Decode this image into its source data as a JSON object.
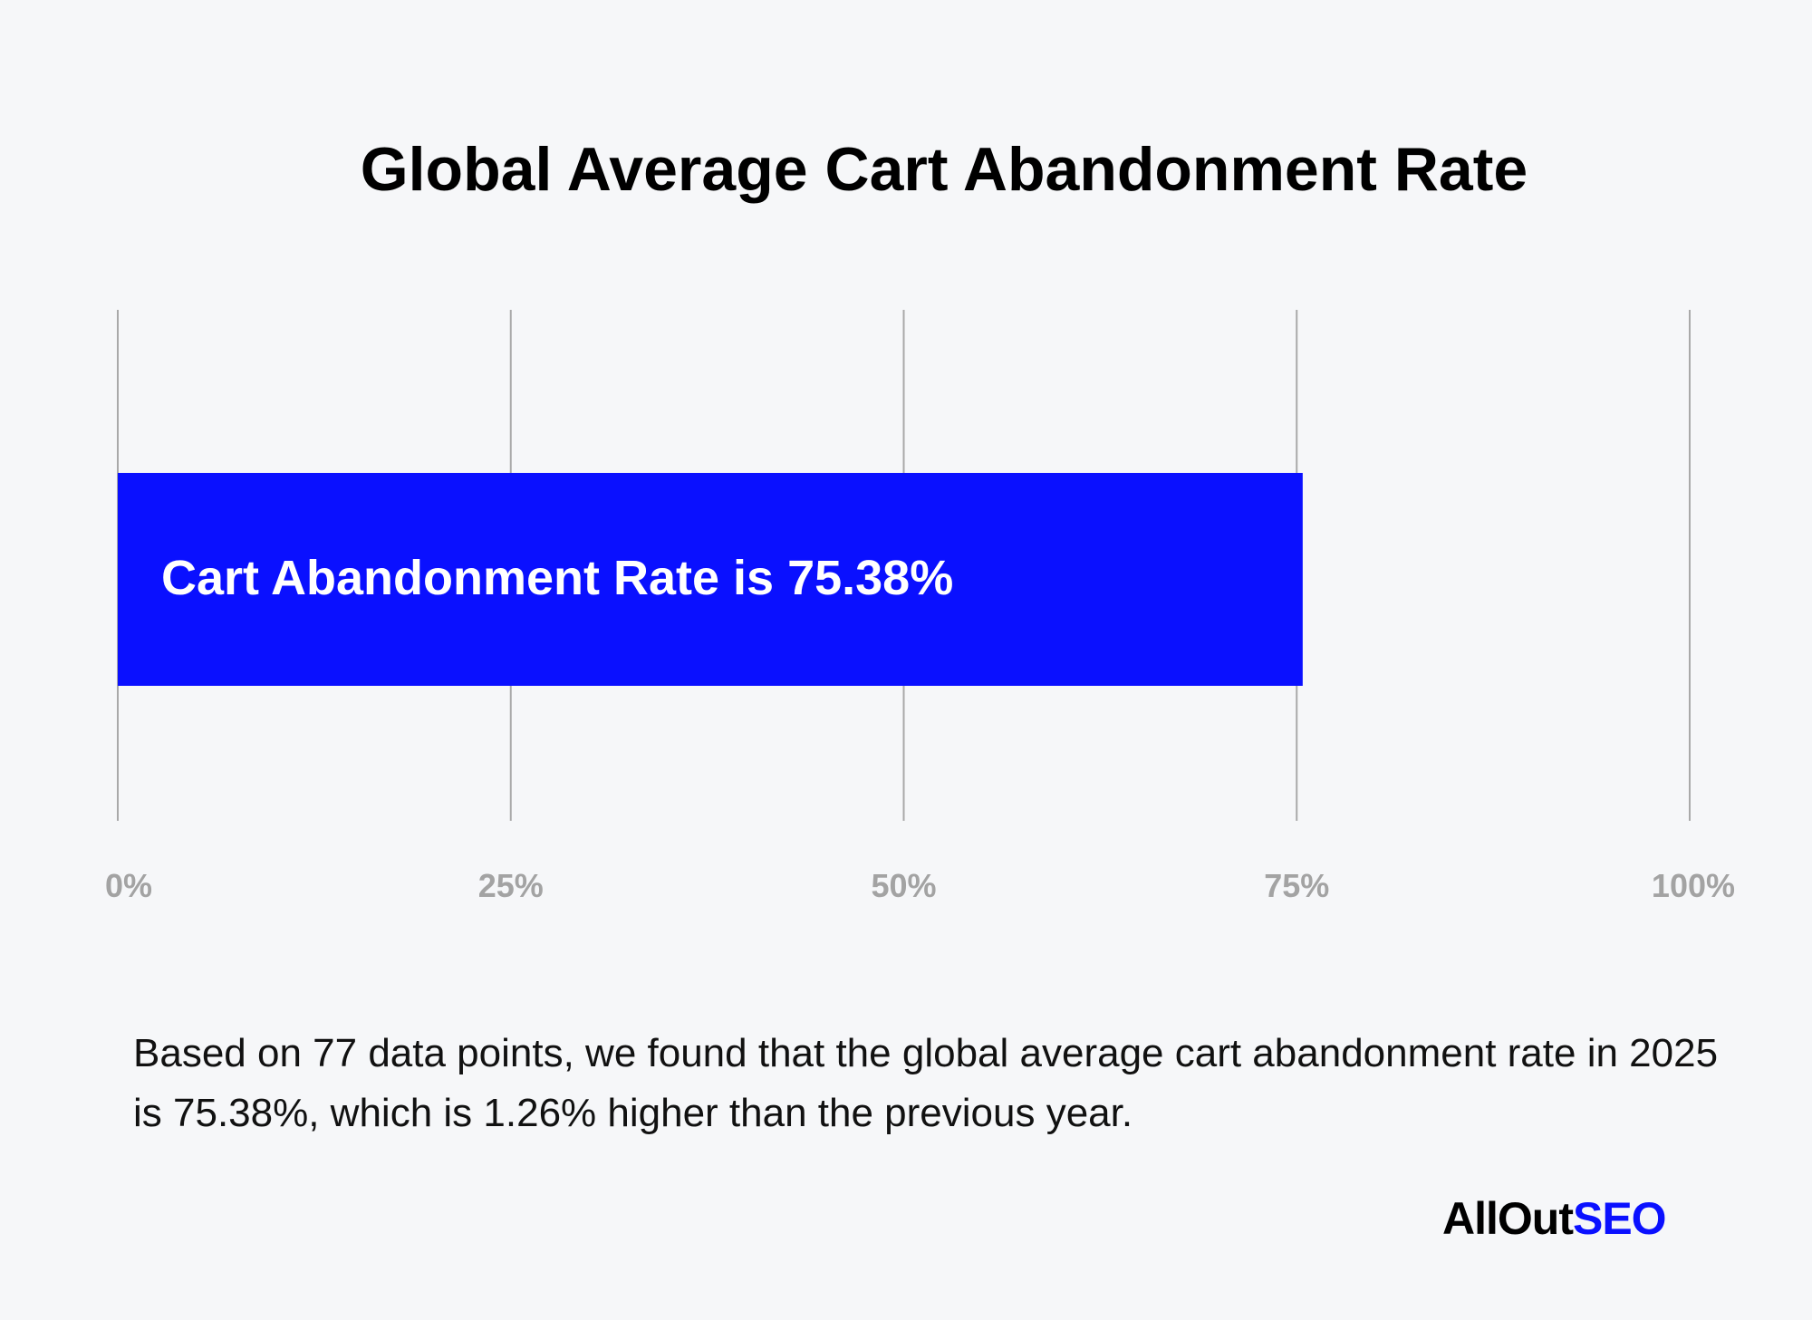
{
  "chart_data": {
    "type": "bar",
    "orientation": "horizontal",
    "title": "Global Average Cart Abandonment Rate",
    "categories": [
      ""
    ],
    "values": [
      75.38
    ],
    "bar_label": "Cart Abandonment Rate is 75.38%",
    "xlim": [
      0,
      100
    ],
    "x_ticks": [
      "0%",
      "25%",
      "50%",
      "75%",
      "100%"
    ],
    "grid": "vertical",
    "bar_color": "#0a10ff"
  },
  "description": "Based on 77 data points, we found that the global average cart abandonment rate in 2025 is 75.38%, which is 1.26% higher than the previous year.",
  "logo": {
    "part1": "AllOut",
    "part2": "SEO"
  }
}
